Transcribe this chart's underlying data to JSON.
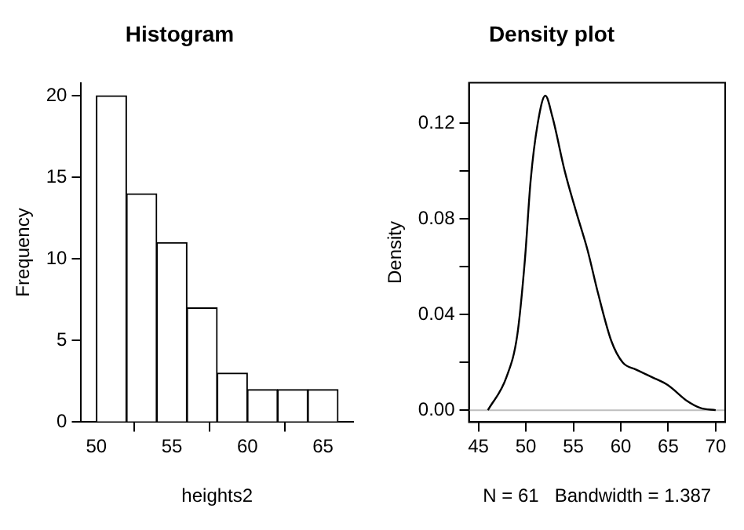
{
  "chart_data": [
    {
      "type": "histogram",
      "title": "Histogram",
      "xlabel": "heights2",
      "ylabel": "Frequency",
      "bins": [
        50,
        52,
        54,
        56,
        58,
        60,
        62,
        64,
        66
      ],
      "values": [
        20,
        14,
        11,
        7,
        3,
        2,
        2,
        2
      ],
      "color": "#ffffff",
      "xlim": [
        49,
        67
      ],
      "xticks": [
        50,
        55,
        60,
        65
      ],
      "ylim": [
        0,
        20.8
      ],
      "yticks": [
        0,
        5,
        10,
        15,
        20
      ]
    },
    {
      "type": "line",
      "title": "Density plot",
      "xlabel": "N = 61   Bandwidth = 1.387",
      "ylabel": "Density",
      "color": "#000000",
      "x": [
        46.0,
        47.95,
        49.1,
        49.9,
        50.5,
        51.25,
        52.05,
        52.8,
        54.1,
        55.3,
        56.5,
        57.6,
        59.0,
        60.2,
        61.6,
        63.3,
        65.0,
        67.0,
        68.4,
        70.0
      ],
      "values": [
        0,
        0.0138,
        0.0316,
        0.063,
        0.096,
        0.12,
        0.1316,
        0.1227,
        0.1,
        0.083,
        0.067,
        0.049,
        0.029,
        0.02,
        0.017,
        0.0138,
        0.0104,
        0.0038,
        0.0009,
        0
      ],
      "xlim": [
        44,
        71
      ],
      "xticks": [
        45,
        50,
        55,
        60,
        65,
        70
      ],
      "ylim": [
        -0.005,
        0.137
      ],
      "yticks": [
        {
          "value": 0,
          "label": "0.00"
        },
        {
          "value": 0.02,
          "label": null
        },
        0.04,
        {
          "value": 0.06,
          "label": null
        },
        0.08,
        {
          "value": 0.1,
          "label": null
        },
        0.12
      ],
      "ref_lines": [
        {
          "axis": "y",
          "value": 0,
          "color": "#bebebe"
        }
      ]
    }
  ]
}
